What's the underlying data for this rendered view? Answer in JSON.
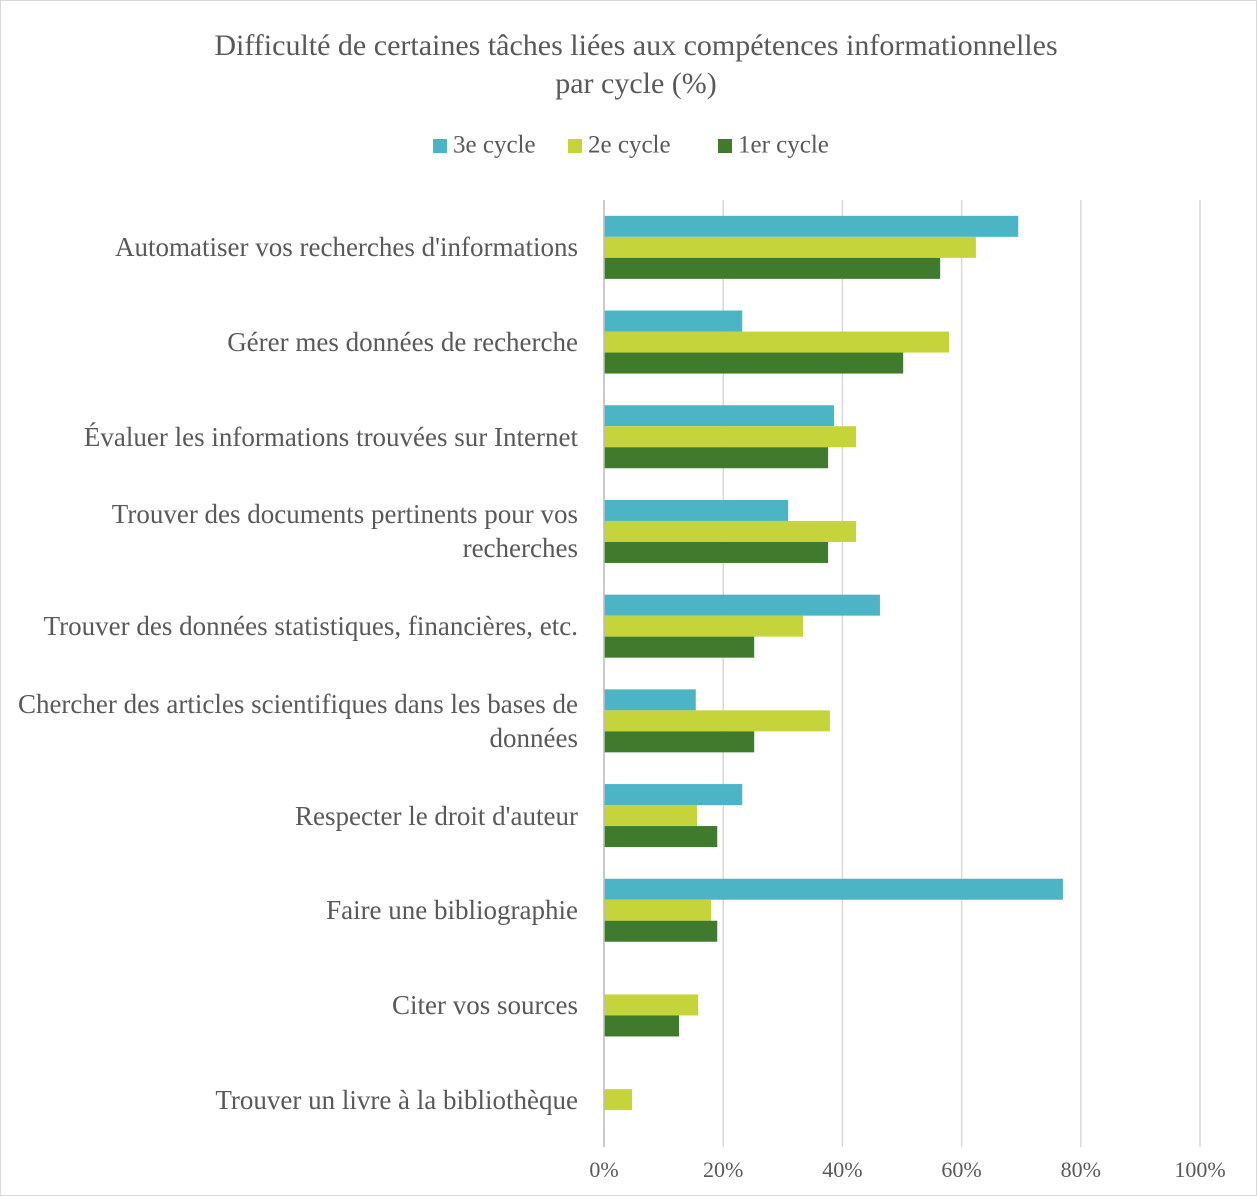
{
  "chart_data": {
    "type": "hbar",
    "title": "Difficulté de certaines tâches liées aux compétences informationnelles",
    "title_line_2": "par cycle (%)",
    "categories": [
      "Automatiser vos recherches d'informations",
      "Gérer mes données de recherche",
      "Évaluer les informations trouvées sur Internet",
      "Trouver des documents pertinents pour vos recherches",
      "Trouver des données statistiques, financières, etc.",
      "Chercher des articles scientifiques dans les bases de données",
      "Respecter le droit d'auteur",
      "Faire une bibliographie",
      "Citer vos sources",
      "Trouver un livre à la bibliothèque"
    ],
    "series": [
      {
        "name": "3e cycle",
        "color": "#4bb5c5",
        "values": [
          69.5,
          23.2,
          38.6,
          30.9,
          46.3,
          15.4,
          23.2,
          77,
          0,
          0
        ]
      },
      {
        "name": "2e cycle",
        "color": "#c5d43b",
        "values": [
          62.4,
          57.9,
          42.3,
          42.3,
          33.4,
          37.9,
          15.6,
          18,
          15.8,
          4.7
        ]
      },
      {
        "name": "1er cycle",
        "color": "#3f7a2d",
        "values": [
          56.4,
          50.2,
          37.6,
          37.6,
          25.2,
          25.2,
          19,
          19,
          12.6,
          0
        ]
      }
    ],
    "xlim": [
      0,
      100
    ],
    "xticks": [
      {
        "value": 0,
        "label": "0%"
      },
      {
        "value": 20,
        "label": "20%"
      },
      {
        "value": 40,
        "label": "40%"
      },
      {
        "value": 60,
        "label": "60%"
      },
      {
        "value": 80,
        "label": "80%"
      },
      {
        "value": 100,
        "label": "100%"
      }
    ],
    "grid": true,
    "legend": "top"
  }
}
